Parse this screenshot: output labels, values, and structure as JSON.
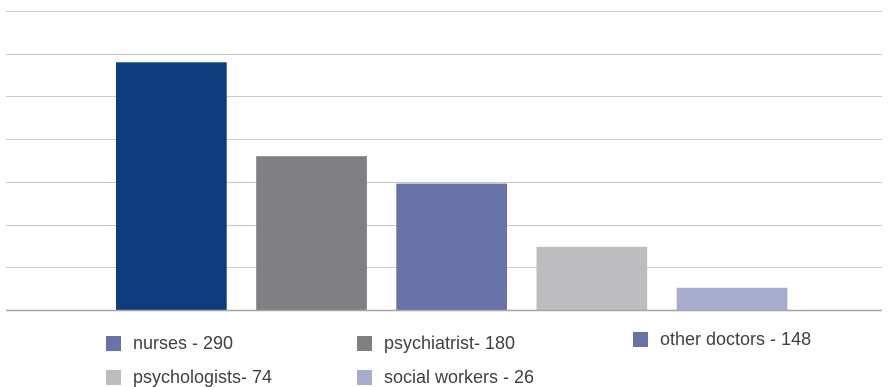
{
  "chart_data": {
    "type": "bar",
    "categories": [
      "nurses",
      "psychiatrist",
      "other doctors",
      "psychologists",
      "social workers"
    ],
    "values": [
      290,
      180,
      148,
      74,
      26
    ],
    "title": "",
    "xlabel": "",
    "ylabel": "",
    "ylim": [
      0,
      350
    ],
    "grid": true,
    "colors": [
      "#0d3d7e",
      "#808083",
      "#6773a8",
      "#bdbdbf",
      "#a7acd0"
    ],
    "legend": {
      "placement": "bottom",
      "items": [
        {
          "label": "nurses - 290",
          "color": "#6773a8"
        },
        {
          "label": "psychiatrist- 180",
          "color": "#808083"
        },
        {
          "label": "other doctors - 148",
          "color": "#6773a8"
        },
        {
          "label": "psychologists- 74",
          "color": "#bdbdbf"
        },
        {
          "label": "social workers - 26",
          "color": "#a7acd0"
        }
      ]
    }
  }
}
